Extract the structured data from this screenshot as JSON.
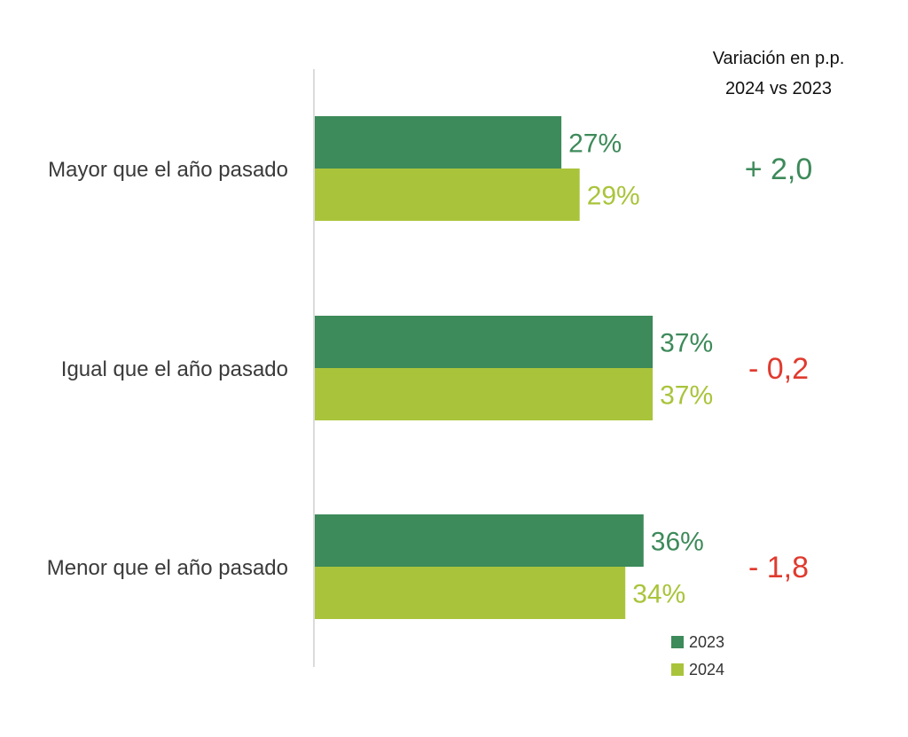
{
  "chart_data": {
    "type": "bar",
    "orientation": "horizontal",
    "categories": [
      "Mayor que el año pasado",
      "Igual que el año pasado",
      "Menor que el año pasado"
    ],
    "series": [
      {
        "name": "2023",
        "values": [
          27,
          37,
          36
        ],
        "labels": [
          "27%",
          "37%",
          "36%"
        ],
        "color": "#3d8a5a"
      },
      {
        "name": "2024",
        "values": [
          29,
          37,
          34
        ],
        "labels": [
          "29%",
          "37%",
          "34%"
        ],
        "color": "#a9c43b"
      }
    ],
    "xlim": [
      0,
      100
    ],
    "grid": false,
    "legend_position": "bottom-right",
    "variation": {
      "header_line1": "Variación en p.p.",
      "header_line2": "2024 vs 2023",
      "values": [
        "+ 2,0",
        "- 0,2",
        "- 1,8"
      ],
      "colors": [
        "#3d8a5a",
        "#e03a2e",
        "#e03a2e"
      ]
    }
  }
}
